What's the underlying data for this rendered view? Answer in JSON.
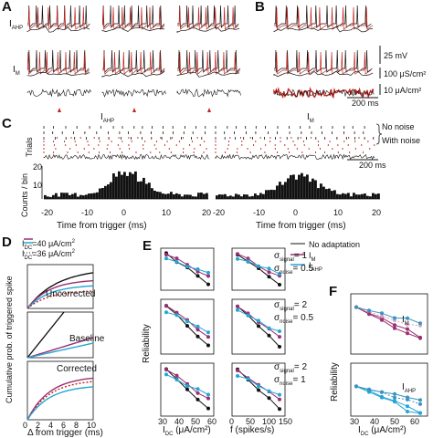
{
  "panels": {
    "A": "A",
    "B": "B",
    "C": "C",
    "D": "D",
    "E": "E",
    "F": "F"
  },
  "panelA": {
    "row1_label": "I",
    "row1_sub": "AHP",
    "row2_label": "I",
    "row2_sub": "M"
  },
  "panelB": {
    "scale_voltage": "25 mV",
    "scale_conductance": "100 μS/cm²",
    "scale_current": "10 μA/cm²",
    "scale_time": "200 ms"
  },
  "panelC": {
    "left_title": "I",
    "left_title_sub": "AHP",
    "right_title": "I",
    "right_title_sub": "M",
    "trials_label": "Trials",
    "no_noise": "No noise",
    "with_noise": "With noise",
    "scale_time": "200 ms",
    "ylabel": "Counts / bin",
    "ytick_20": "20",
    "ytick_10": "10",
    "xlabel": "Time from trigger (ms)",
    "xticks": [
      "-20",
      "-10",
      "0",
      "10",
      "20"
    ]
  },
  "panelD": {
    "legend_1": "I",
    "legend_1_sub": "DC",
    "legend_1_val": "=40 μA/cm",
    "legend_2": "I",
    "legend_2_sub": "DC",
    "legend_2_val": "=36 μA/cm",
    "sup": "2",
    "uncorrected": "Uncorrected",
    "baseline": "Baseline",
    "corrected": "Corrected",
    "ylabel": "Cumulative prob. of triggered spike",
    "xticks": [
      "0",
      "2",
      "4",
      "6",
      "8",
      "10"
    ],
    "xlabel": "Δ from trigger (ms)"
  },
  "panelE": {
    "ylabel": "Reliability",
    "legend_no_adapt": "No adaptation",
    "legend_im": "I",
    "legend_im_sub": "M",
    "legend_iahp": "I",
    "legend_iahp_sub": "AHP",
    "row1_sig": "σ",
    "row1_sig_sub": "signal",
    "row1_sig_val": "= 1",
    "row1_noise": "σ",
    "row1_noise_sub": "noise",
    "row1_noise_val": "= 0.5",
    "row2_sig": "σ",
    "row2_sig_sub": "signal",
    "row2_sig_val": "= 2",
    "row2_noise": "σ",
    "row2_noise_sub": "noise",
    "row2_noise_val": "= 0.5",
    "row3_sig": "σ",
    "row3_sig_sub": "signal",
    "row3_sig_val": "= 2",
    "row3_noise": "σ",
    "row3_noise_sub": "noise",
    "row3_noise_val": "= 1",
    "xticks_left": [
      "30",
      "40",
      "50",
      "60"
    ],
    "xticks_right": [
      "0",
      "50",
      "100",
      "150"
    ],
    "xlabel_left": "I",
    "xlabel_left_sub": "DC",
    "xlabel_left_unit": " (μA/cm²)",
    "xlabel_right": "f (spikes/s)"
  },
  "panelF": {
    "label_im": "I",
    "label_im_sub": "M",
    "label_iahp": "I",
    "label_iahp_sub": "AHP",
    "ylabel": "Reliability",
    "xticks": [
      "30",
      "40",
      "50",
      "60"
    ],
    "xlabel": "I",
    "xlabel_sub": "DC",
    "xlabel_unit": " (μA/cm²)"
  },
  "colors": {
    "black": "#111111",
    "red": "#c0261f",
    "purple": "#9c2f73",
    "cyan": "#22a6d6",
    "teal": "#3a93c1",
    "pink": "#d9a6c2"
  }
}
